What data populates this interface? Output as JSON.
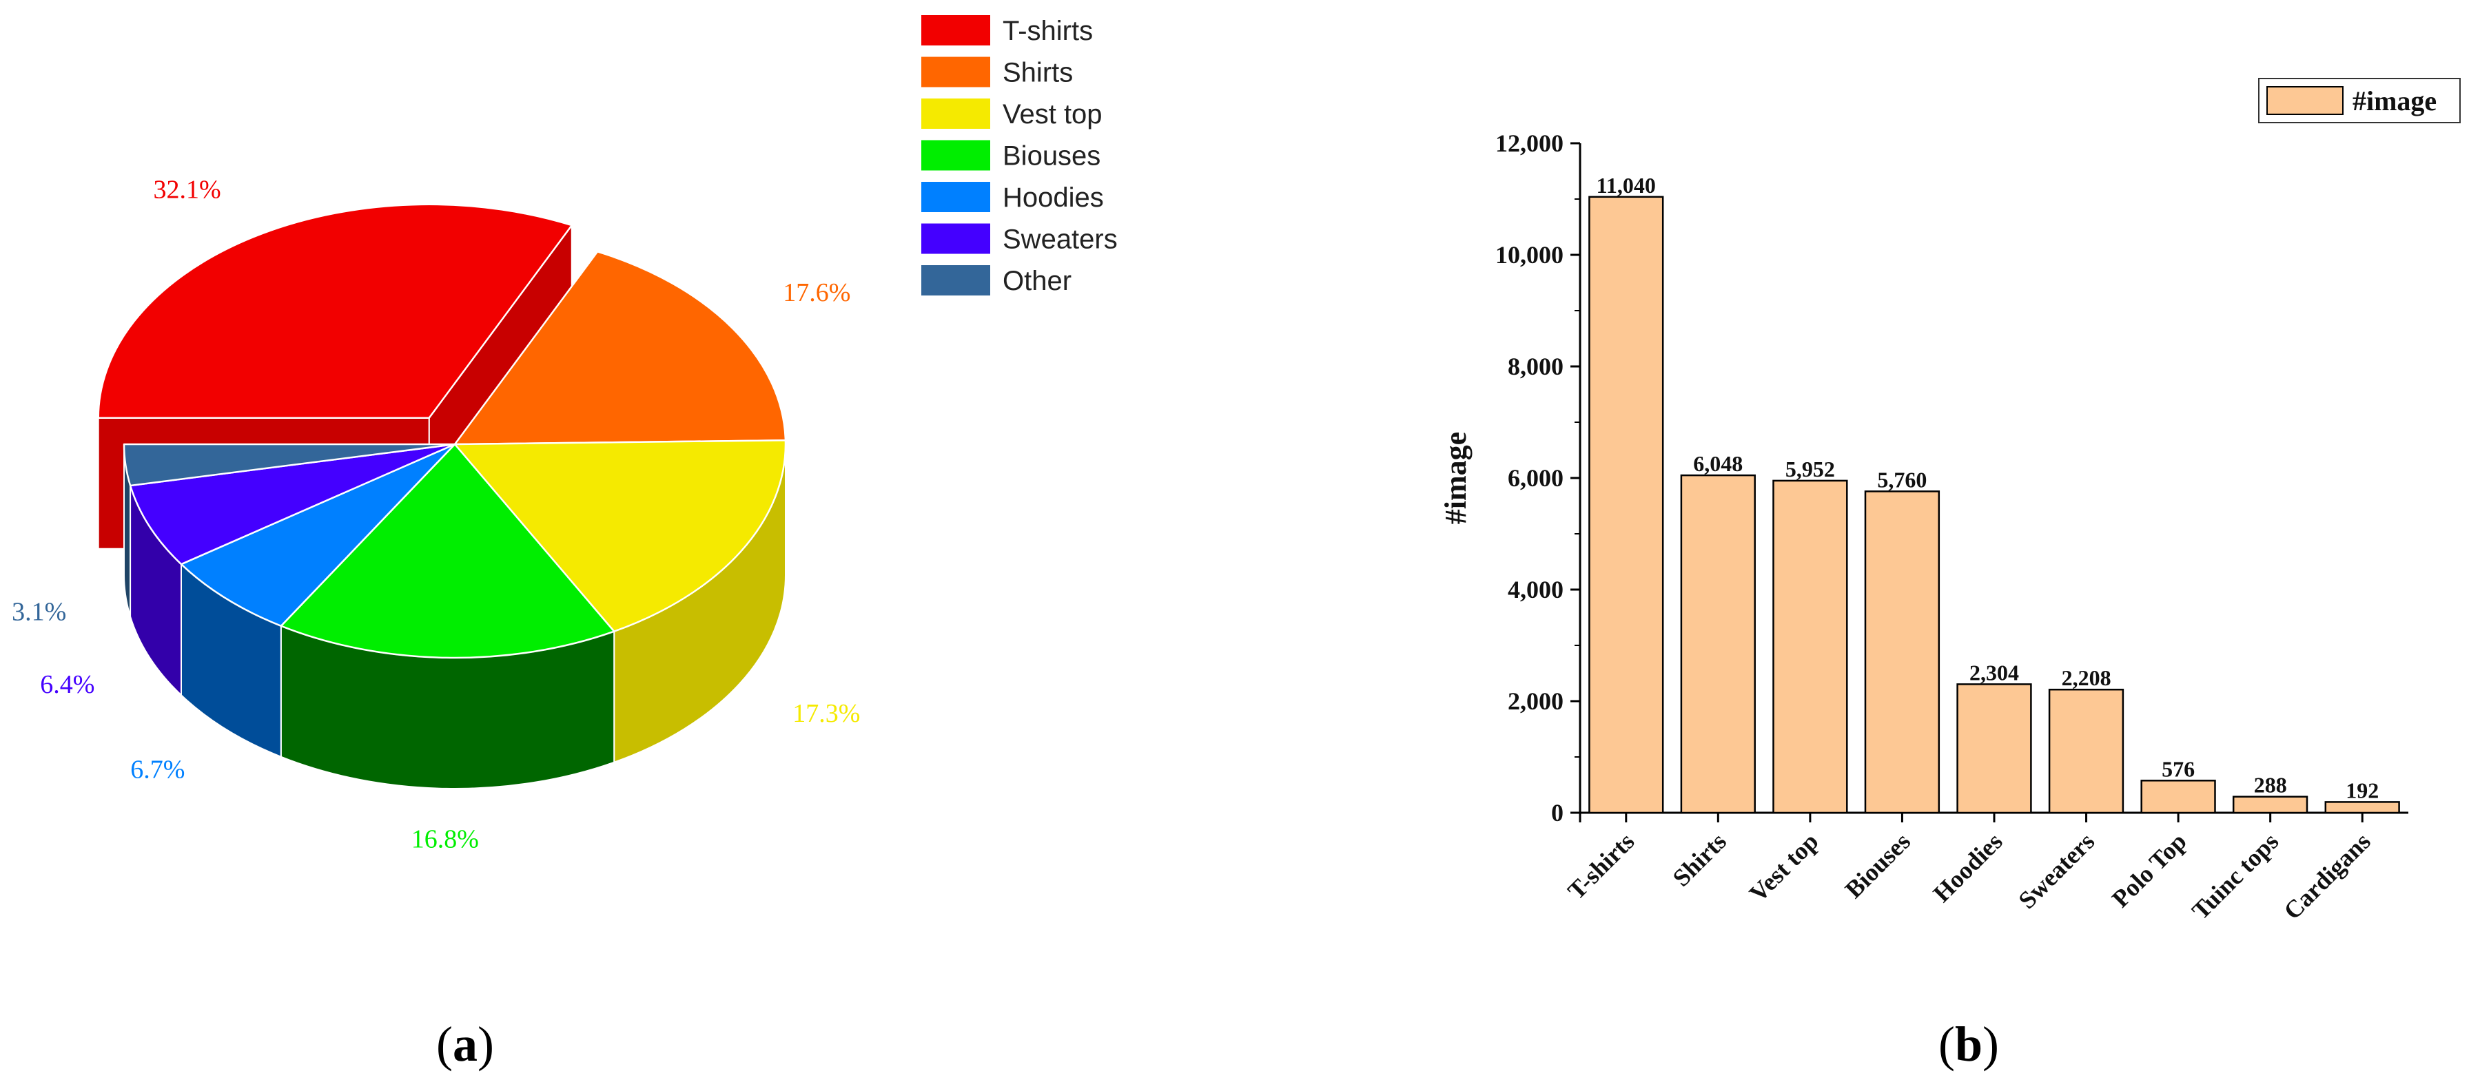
{
  "panel_a_label": "a",
  "panel_b_label": "b",
  "chart_data": [
    {
      "type": "pie",
      "style": "3d-exploded",
      "legend_position": "top-right",
      "slices": [
        {
          "label": "T-shirts",
          "pct_text": "32.1%",
          "value": 32.1,
          "color": "#f20000",
          "side_color": "#c80000",
          "exploded": true
        },
        {
          "label": "Shirts",
          "pct_text": "17.6%",
          "value": 17.6,
          "color": "#ff6600",
          "side_color": "#d35400",
          "exploded": false
        },
        {
          "label": "Vest top",
          "pct_text": "17.3%",
          "value": 17.3,
          "color": "#f5ea00",
          "side_color": "#c8be00",
          "exploded": false
        },
        {
          "label": "Biouses",
          "pct_text": "16.8%",
          "value": 16.8,
          "color": "#00ee00",
          "side_color": "#006600",
          "exploded": false
        },
        {
          "label": "Hoodies",
          "pct_text": "6.7%",
          "value": 6.7,
          "color": "#0080ff",
          "side_color": "#004d99",
          "exploded": false
        },
        {
          "label": "Sweaters",
          "pct_text": "6.4%",
          "value": 6.4,
          "color": "#4400ff",
          "side_color": "#3300aa",
          "exploded": false
        },
        {
          "label": "Other",
          "pct_text": "3.1%",
          "value": 3.1,
          "color": "#336699",
          "side_color": "#1f4466",
          "exploded": false
        }
      ]
    },
    {
      "type": "bar",
      "categories": [
        "T-shirts",
        "Shirts",
        "Vest top",
        "Biouses",
        "Hoodies",
        "Sweaters",
        "Polo Top",
        "Tuinc tops",
        "Cardigans"
      ],
      "series": [
        {
          "name": "#image",
          "values": [
            11040,
            6048,
            5952,
            5760,
            2304,
            2208,
            576,
            288,
            192
          ],
          "color": "#fdc894"
        }
      ],
      "value_labels": [
        "11,040",
        "6,048",
        "5,952",
        "5,760",
        "2,304",
        "2,208",
        "576",
        "288",
        "192"
      ],
      "ylabel": "#image",
      "xlabel": "",
      "ylim": [
        0,
        12000
      ],
      "yticks": [
        0,
        2000,
        4000,
        6000,
        8000,
        10000,
        12000
      ],
      "ytick_labels": [
        "0",
        "2,000",
        "4,000",
        "6,000",
        "8,000",
        "10,000",
        "12,000"
      ],
      "legend_position": "top-right",
      "grid": false
    }
  ]
}
